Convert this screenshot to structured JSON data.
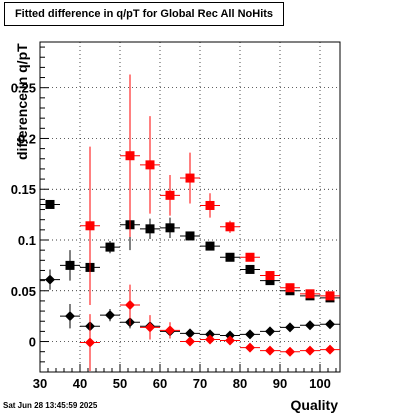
{
  "chart_data": {
    "type": "scatter",
    "title": "Fitted difference in q/pT for Global Rec All NoHits",
    "xlabel": "Quality",
    "ylabel": "difference in q/pT",
    "xlim": [
      30,
      105
    ],
    "ylim": [
      -0.03,
      0.295
    ],
    "x_ticks": [
      30,
      40,
      50,
      60,
      70,
      80,
      90,
      100
    ],
    "y_ticks": [
      0,
      0.05,
      0.1,
      0.15,
      0.2,
      0.25
    ],
    "y_tick_labels": [
      "0",
      "0.05",
      "0.1",
      "0.15",
      "0.2",
      "0.25"
    ],
    "grid": true,
    "series": [
      {
        "marker": "square",
        "color": "#000000",
        "x": [
          32.5,
          37.5,
          42.5,
          47.5,
          52.5,
          57.5,
          62.5,
          67.5,
          72.5,
          77.5,
          82.5,
          87.5,
          92.5,
          97.5,
          102.5
        ],
        "y": [
          0.135,
          0.075,
          0.073,
          0.093,
          0.115,
          0.111,
          0.112,
          0.104,
          0.094,
          0.083,
          0.071,
          0.06,
          0.05,
          0.045,
          0.043
        ],
        "err": [
          0.004,
          0.015,
          0.02,
          0.006,
          0.025,
          0.01,
          0.01,
          0.003,
          0.003,
          0.003,
          0.002,
          0.002,
          0.002,
          0.002,
          0.002
        ]
      },
      {
        "marker": "square",
        "color": "#ff0000",
        "x": [
          42.5,
          52.5,
          57.5,
          62.5,
          67.5,
          72.5,
          77.5,
          82.5,
          87.5,
          92.5,
          97.5,
          102.5
        ],
        "y": [
          0.114,
          0.183,
          0.174,
          0.144,
          0.161,
          0.134,
          0.113,
          0.083,
          0.065,
          0.053,
          0.047,
          0.045
        ],
        "err": [
          0.078,
          0.08,
          0.048,
          0.02,
          0.025,
          0.012,
          0.006,
          0.004,
          0.003,
          0.002,
          0.002,
          0.002
        ]
      },
      {
        "marker": "diamond",
        "color": "#000000",
        "x": [
          32.5,
          37.5,
          42.5,
          47.5,
          52.5,
          57.5,
          62.5,
          67.5,
          72.5,
          77.5,
          82.5,
          87.5,
          92.5,
          97.5,
          102.5
        ],
        "y": [
          0.061,
          0.025,
          0.015,
          0.026,
          0.019,
          0.015,
          0.01,
          0.008,
          0.007,
          0.006,
          0.007,
          0.01,
          0.014,
          0.016,
          0.017
        ],
        "err": [
          0.01,
          0.012,
          0.008,
          0.006,
          0.006,
          0.004,
          0.002,
          0.001,
          0.001,
          0.001,
          0.001,
          0.001,
          0.001,
          0.001,
          0.001
        ]
      },
      {
        "marker": "diamond",
        "color": "#ff0000",
        "x": [
          42.5,
          52.5,
          57.5,
          62.5,
          67.5,
          72.5,
          77.5,
          82.5,
          87.5,
          92.5,
          97.5,
          102.5
        ],
        "y": [
          -0.001,
          0.036,
          0.014,
          0.011,
          0.0,
          0.002,
          0.001,
          -0.006,
          -0.009,
          -0.01,
          -0.009,
          -0.008
        ],
        "err": [
          0.028,
          0.02,
          0.012,
          0.008,
          0.004,
          0.002,
          0.002,
          0.001,
          0.001,
          0.001,
          0.001,
          0.001
        ]
      }
    ]
  },
  "footer": "Sat Jun 28 13:45:59 2025"
}
